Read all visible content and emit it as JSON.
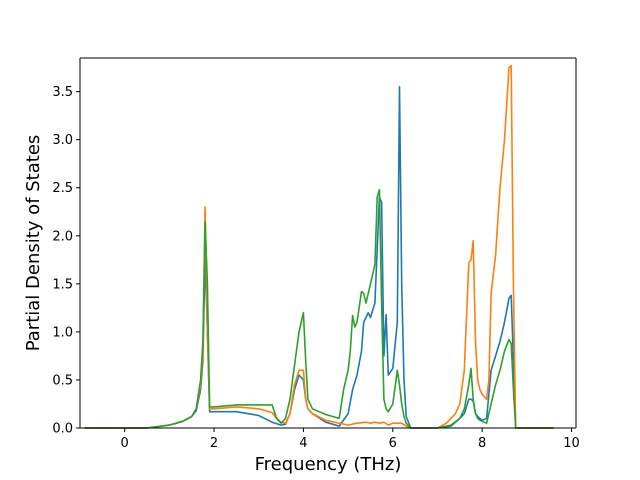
{
  "chart_data": {
    "type": "line",
    "title": "",
    "xlabel": "Frequency (THz)",
    "ylabel": "Partial Density of States",
    "xlim": [
      -1.0,
      10.1
    ],
    "ylim": [
      0.0,
      3.85
    ],
    "grid": false,
    "legend": "none",
    "xticks": [
      0,
      2,
      4,
      6,
      8,
      10
    ],
    "xtick_labels": [
      "0",
      "2",
      "4",
      "6",
      "8",
      "10"
    ],
    "yticks": [
      0.0,
      0.5,
      1.0,
      1.5,
      2.0,
      2.5,
      3.0,
      3.5
    ],
    "ytick_labels": [
      "0.0",
      "0.5",
      "1.0",
      "1.5",
      "2.0",
      "2.5",
      "3.0",
      "3.5"
    ],
    "series": [
      {
        "color": "#1f77b4",
        "x": [
          -0.9,
          0.5,
          1.0,
          1.3,
          1.5,
          1.6,
          1.7,
          1.75,
          1.8,
          1.85,
          1.9,
          1.95,
          2.0,
          2.5,
          3.0,
          3.3,
          3.5,
          3.6,
          3.7,
          3.8,
          3.9,
          4.0,
          4.05,
          4.1,
          4.2,
          4.5,
          4.8,
          5.0,
          5.1,
          5.2,
          5.3,
          5.35,
          5.4,
          5.45,
          5.5,
          5.6,
          5.7,
          5.75,
          5.8,
          5.85,
          5.9,
          6.0,
          6.1,
          6.15,
          6.2,
          6.25,
          6.3,
          6.4,
          6.5,
          7.0,
          7.3,
          7.5,
          7.6,
          7.7,
          7.75,
          7.8,
          7.85,
          7.9,
          7.95,
          8.0,
          8.1,
          8.2,
          8.3,
          8.4,
          8.5,
          8.6,
          8.65,
          8.7,
          8.75,
          9.6
        ],
        "y": [
          0.0,
          0.0,
          0.03,
          0.07,
          0.12,
          0.18,
          0.4,
          0.7,
          1.8,
          1.0,
          0.17,
          0.17,
          0.17,
          0.17,
          0.13,
          0.06,
          0.03,
          0.04,
          0.15,
          0.4,
          0.55,
          0.5,
          0.3,
          0.2,
          0.15,
          0.06,
          0.02,
          0.15,
          0.4,
          0.55,
          0.8,
          1.1,
          1.15,
          1.2,
          1.15,
          1.3,
          2.4,
          2.35,
          0.75,
          1.18,
          0.55,
          0.62,
          1.1,
          3.55,
          1.5,
          0.5,
          0.12,
          0.0,
          0.0,
          0.0,
          0.02,
          0.1,
          0.15,
          0.3,
          0.3,
          0.28,
          0.15,
          0.12,
          0.1,
          0.08,
          0.1,
          0.6,
          0.75,
          0.9,
          1.1,
          1.35,
          1.38,
          0.7,
          0.0,
          0.0
        ]
      },
      {
        "color": "#ff7f0e",
        "x": [
          -0.9,
          0.5,
          1.0,
          1.3,
          1.5,
          1.6,
          1.7,
          1.75,
          1.8,
          1.85,
          1.9,
          1.95,
          2.0,
          2.5,
          3.0,
          3.3,
          3.4,
          3.5,
          3.6,
          3.7,
          3.8,
          3.9,
          4.0,
          4.05,
          4.1,
          4.2,
          4.5,
          4.8,
          5.0,
          5.2,
          5.4,
          5.5,
          5.6,
          5.7,
          5.8,
          5.9,
          6.0,
          6.2,
          6.3,
          6.4,
          6.5,
          7.0,
          7.2,
          7.4,
          7.5,
          7.6,
          7.7,
          7.75,
          7.8,
          7.85,
          7.9,
          7.95,
          8.0,
          8.1,
          8.15,
          8.2,
          8.3,
          8.4,
          8.5,
          8.6,
          8.65,
          8.7,
          8.75,
          9.6
        ],
        "y": [
          0.0,
          0.0,
          0.03,
          0.07,
          0.12,
          0.2,
          0.45,
          0.8,
          2.3,
          1.0,
          0.2,
          0.2,
          0.2,
          0.22,
          0.2,
          0.16,
          0.1,
          0.06,
          0.05,
          0.15,
          0.45,
          0.6,
          0.6,
          0.3,
          0.2,
          0.15,
          0.08,
          0.05,
          0.03,
          0.05,
          0.06,
          0.05,
          0.06,
          0.05,
          0.06,
          0.03,
          0.05,
          0.05,
          0.02,
          0.0,
          0.0,
          0.0,
          0.05,
          0.15,
          0.25,
          0.6,
          1.72,
          1.75,
          1.95,
          0.9,
          0.5,
          0.4,
          0.35,
          0.3,
          0.5,
          1.4,
          1.8,
          2.5,
          3.0,
          3.75,
          3.77,
          1.5,
          0.0,
          0.0
        ]
      },
      {
        "color": "#2ca02c",
        "x": [
          -0.9,
          0.5,
          1.0,
          1.3,
          1.5,
          1.6,
          1.7,
          1.75,
          1.8,
          1.85,
          1.9,
          1.95,
          2.0,
          2.5,
          3.0,
          3.3,
          3.4,
          3.5,
          3.6,
          3.7,
          3.8,
          3.9,
          4.0,
          4.05,
          4.1,
          4.2,
          4.5,
          4.8,
          4.9,
          5.0,
          5.05,
          5.1,
          5.15,
          5.2,
          5.3,
          5.35,
          5.4,
          5.5,
          5.6,
          5.65,
          5.7,
          5.75,
          5.8,
          5.85,
          5.9,
          6.0,
          6.1,
          6.15,
          6.2,
          6.25,
          6.3,
          6.4,
          6.5,
          7.0,
          7.3,
          7.5,
          7.6,
          7.7,
          7.75,
          7.8,
          7.85,
          7.9,
          7.95,
          8.0,
          8.1,
          8.2,
          8.3,
          8.4,
          8.5,
          8.6,
          8.65,
          8.7,
          8.75,
          9.6
        ],
        "y": [
          0.0,
          0.0,
          0.03,
          0.07,
          0.12,
          0.2,
          0.5,
          0.9,
          2.15,
          1.5,
          0.22,
          0.22,
          0.22,
          0.24,
          0.24,
          0.24,
          0.1,
          0.05,
          0.1,
          0.3,
          0.65,
          1.0,
          1.2,
          0.7,
          0.3,
          0.2,
          0.14,
          0.1,
          0.4,
          0.6,
          0.8,
          1.17,
          1.05,
          1.1,
          1.42,
          1.4,
          1.3,
          1.5,
          1.7,
          2.4,
          2.48,
          1.3,
          0.3,
          0.2,
          0.17,
          0.25,
          0.6,
          0.45,
          0.25,
          0.12,
          0.05,
          0.0,
          0.0,
          0.0,
          0.03,
          0.1,
          0.2,
          0.45,
          0.62,
          0.3,
          0.15,
          0.1,
          0.08,
          0.07,
          0.05,
          0.25,
          0.45,
          0.6,
          0.8,
          0.92,
          0.88,
          0.4,
          0.0,
          0.0
        ]
      }
    ]
  }
}
